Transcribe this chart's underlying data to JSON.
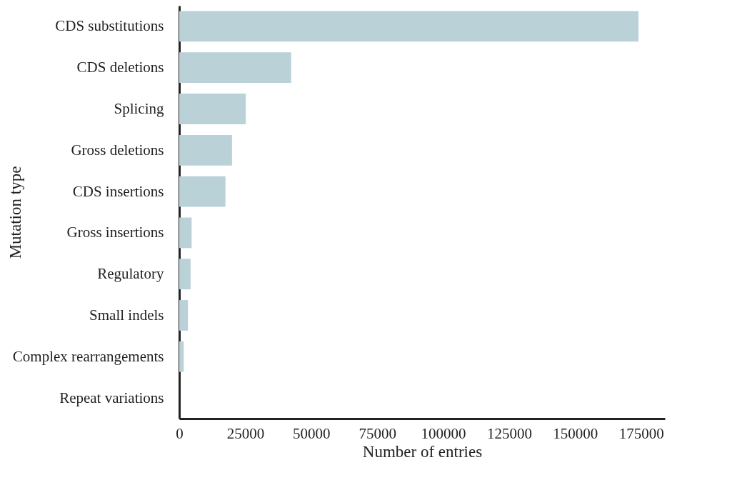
{
  "chart_data": {
    "type": "bar",
    "orientation": "horizontal",
    "xlabel": "Number of entries",
    "ylabel": "Mutation type",
    "categories": [
      "CDS substitutions",
      "CDS deletions",
      "Splicing",
      "Gross deletions",
      "CDS insertions",
      "Gross insertions",
      "Regulatory",
      "Small indels",
      "Complex rearrangements",
      "Repeat variations"
    ],
    "values": [
      174000,
      42400,
      25200,
      20000,
      17500,
      4700,
      4300,
      3300,
      1700,
      0
    ],
    "color": "#bad1d8",
    "xlim": [
      0,
      184000
    ],
    "xticks": [
      0,
      25000,
      50000,
      75000,
      100000,
      125000,
      150000,
      175000
    ],
    "grid": false
  }
}
